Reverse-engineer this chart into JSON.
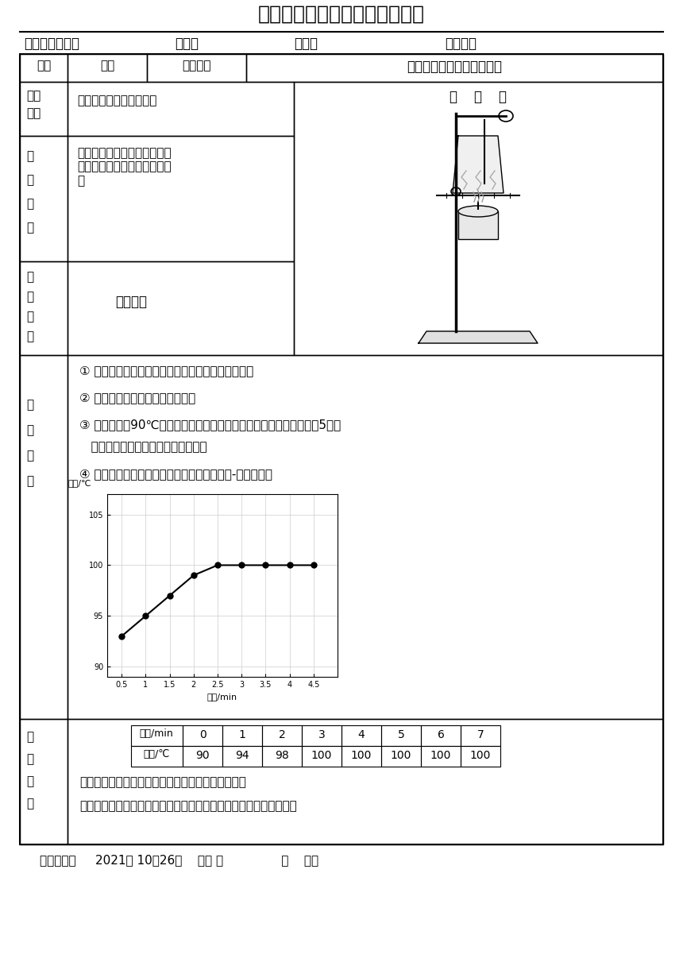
{
  "title": "吉安县中小学生分组实验报告单",
  "subject": "物理",
  "exp_name": "探究水沸腾时温度变化特点",
  "exp_purpose": "水沸腾时温度和气泡变化",
  "device_label": "装    置    图",
  "exp_equip": "铁架台、酒精灯、石棉网、烧\n杯、温度计、带孔的纸板、火\n柴",
  "exp_principle": "沸腾吸热",
  "step1": "① 把适量的水倒入烧杯中，自下而上组装实验器材；",
  "step2": "② 点燃酒精灯给加水的烧杯加热；",
  "step3a": "③ 当水温达到90℃时，每隔一分钟记录一次水的温度，直到水沸腾后5分钟",
  "step3b": "   为止，同时观察沸腾前后沸腾现象；",
  "step4": "④ 根据记录的温度，利用描点连线法作出时间-温度图像。",
  "graph_ylabel": "温度/℃",
  "graph_xlabel": "时间/min",
  "graph_xticks": [
    0.5,
    1,
    1.5,
    2,
    2.5,
    3,
    3.5,
    4,
    4.5
  ],
  "graph_xtick_labels": [
    "0.5",
    "1",
    "1.5",
    "2",
    "2.5",
    "3",
    "3.5",
    "4",
    "4.5"
  ],
  "graph_yticks": [
    90,
    95,
    100,
    105
  ],
  "graph_ylim": [
    89,
    107
  ],
  "graph_xlim": [
    0.2,
    5.0
  ],
  "data_x": [
    0.5,
    1.0,
    1.5,
    2.0,
    2.5,
    3.0,
    3.5,
    4.0,
    4.5
  ],
  "data_y": [
    93,
    95,
    97,
    99,
    100,
    100,
    100,
    100,
    100
  ],
  "table_times": [
    "0",
    "1",
    "2",
    "3",
    "4",
    "5",
    "6",
    "7"
  ],
  "table_temps": [
    "90",
    "94",
    "98",
    "100",
    "100",
    "100",
    "100",
    "100"
  ],
  "result_text1": "水沸腾前，温度升高，气泡在上升过程中由大变小；",
  "result_text2": "水沸腾后，温度不变，气泡在上升过程中由小变大，在液面处破裂。",
  "footer": "实验时间：     2021年 10月26日    星期 二               第    节课",
  "bg_color": "#ffffff",
  "grid_color": "#cccccc"
}
